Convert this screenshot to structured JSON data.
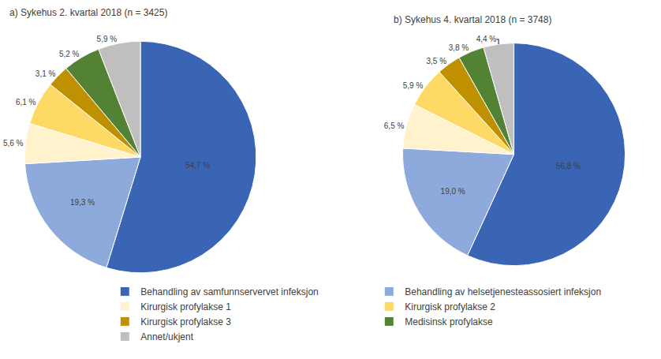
{
  "chart_data": [
    {
      "type": "pie",
      "title": "a) Sykehus 2. kvartal 2018 (n = 3425)",
      "categories": [
        "Behandling av samfunnservervet infeksjon",
        "Behandling av helsetjenesteassosiert infeksjon",
        "Kirurgisk profylakse 1",
        "Kirurgisk profylakse 2",
        "Kirurgisk profylakse 3",
        "Medisinsk profylakse",
        "Annet/ukjent"
      ],
      "values": [
        54.7,
        19.3,
        5.6,
        6.1,
        3.1,
        5.2,
        5.9
      ],
      "value_labels": [
        "54,7 %",
        "19,3 %",
        "5,6 %",
        "6,1 %",
        "3,1 %",
        "5,2 %",
        "5,9 %"
      ],
      "colors": [
        "#3a64b4",
        "#8eaadc",
        "#fff2cc",
        "#ffd966",
        "#bf9000",
        "#548235",
        "#bfbfbf"
      ],
      "data_labels": true,
      "legend": "bottom"
    },
    {
      "type": "pie",
      "title": "b) Sykehus 4. kvartal 2018 (n = 3748)",
      "categories": [
        "Behandling av samfunnservervet infeksjon",
        "Behandling av helsetjenesteassosiert infeksjon",
        "Kirurgisk profylakse 1",
        "Kirurgisk profylakse 2",
        "Kirurgisk profylakse 3",
        "Medisinsk profylakse",
        "Annet/ukjent"
      ],
      "values": [
        56.8,
        19.0,
        6.5,
        5.9,
        3.5,
        3.8,
        4.4
      ],
      "value_labels": [
        "56,8 %",
        "19,0 %",
        "6,5 %",
        "5,9 %",
        "3,5 %",
        "3,8 %",
        "4,4 %"
      ],
      "colors": [
        "#3a64b4",
        "#8eaadc",
        "#fff2cc",
        "#ffd966",
        "#bf9000",
        "#548235",
        "#bfbfbf"
      ],
      "data_labels": true,
      "legend": "bottom"
    }
  ]
}
